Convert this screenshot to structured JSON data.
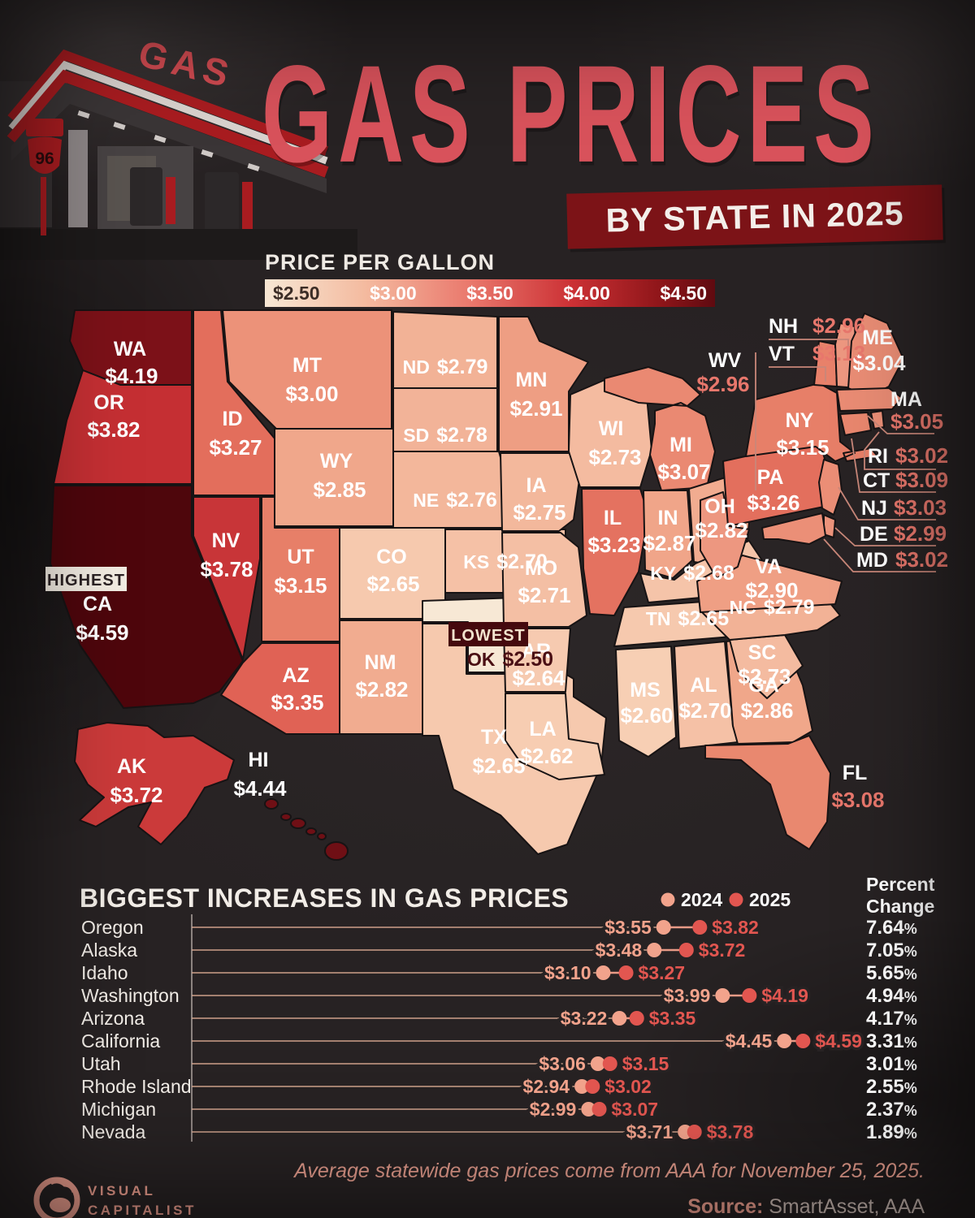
{
  "header": {
    "station_sign": "GAS",
    "shield_number": "96",
    "title": "GAS PRICES",
    "banner": "BY STATE IN 2025"
  },
  "legend": {
    "title": "PRICE PER GALLON",
    "ticks": [
      "$2.50",
      "$3.00",
      "$3.50",
      "$4.00",
      "$4.50"
    ]
  },
  "map": {
    "badges": {
      "highest": "HIGHEST",
      "lowest": "LOWEST"
    },
    "states": {
      "wa": {
        "abbr": "WA",
        "price": "$4.19",
        "color": "#7C1118"
      },
      "or": {
        "abbr": "OR",
        "price": "$3.82",
        "color": "#C52F33"
      },
      "ca": {
        "abbr": "CA",
        "price": "$4.59",
        "color": "#4E060C"
      },
      "nv": {
        "abbr": "NV",
        "price": "$3.78",
        "color": "#C83538"
      },
      "id": {
        "abbr": "ID",
        "price": "$3.27",
        "color": "#E36E5C"
      },
      "mt": {
        "abbr": "MT",
        "price": "$3.00",
        "color": "#EC9279"
      },
      "wy": {
        "abbr": "WY",
        "price": "$2.85",
        "color": "#F0A78B"
      },
      "ut": {
        "abbr": "UT",
        "price": "$3.15",
        "color": "#E77F68"
      },
      "co": {
        "abbr": "CO",
        "price": "$2.65",
        "color": "#F6C9AE"
      },
      "az": {
        "abbr": "AZ",
        "price": "$3.35",
        "color": "#E06255"
      },
      "nm": {
        "abbr": "NM",
        "price": "$2.82",
        "color": "#F1AC90"
      },
      "ak": {
        "abbr": "AK",
        "price": "$3.72",
        "color": "#CB3A3A"
      },
      "hi": {
        "abbr": "HI",
        "price": "$4.44",
        "color": "#6F0F15"
      },
      "nd": {
        "abbr": "ND",
        "price": "$2.79",
        "color": "#F2B296"
      },
      "sd": {
        "abbr": "SD",
        "price": "$2.78",
        "color": "#F2B398"
      },
      "ne": {
        "abbr": "NE",
        "price": "$2.76",
        "color": "#F3B79B"
      },
      "ks": {
        "abbr": "KS",
        "price": "$2.70",
        "color": "#F5C1A6"
      },
      "ok": {
        "abbr": "OK",
        "price": "$2.50",
        "color": "#F7E8D5"
      },
      "tx": {
        "abbr": "TX",
        "price": "$2.65",
        "color": "#F6C9AE"
      },
      "mn": {
        "abbr": "MN",
        "price": "$2.91",
        "color": "#EE9E83"
      },
      "ia": {
        "abbr": "IA",
        "price": "$2.75",
        "color": "#F3B89C"
      },
      "mo": {
        "abbr": "MO",
        "price": "$2.71",
        "color": "#F4BFA4"
      },
      "ar": {
        "abbr": "AR",
        "price": "$2.64",
        "color": "#F6CAB0"
      },
      "la": {
        "abbr": "LA",
        "price": "$2.62",
        "color": "#F7CDB2"
      },
      "wi": {
        "abbr": "WI",
        "price": "$2.73",
        "color": "#F4BBA0"
      },
      "il": {
        "abbr": "IL",
        "price": "$3.23",
        "color": "#E47260"
      },
      "in": {
        "abbr": "IN",
        "price": "$2.87",
        "color": "#F0A589"
      },
      "mi": {
        "abbr": "MI",
        "price": "$3.07",
        "color": "#EA8972"
      },
      "oh": {
        "abbr": "OH",
        "price": "$2.82",
        "color": "#F1AC90"
      },
      "ky": {
        "abbr": "KY",
        "price": "$2.68",
        "color": "#F5C4A9"
      },
      "tn": {
        "abbr": "TN",
        "price": "$2.65",
        "color": "#F6C9AE"
      },
      "ms": {
        "abbr": "MS",
        "price": "$2.60",
        "color": "#F7CFB4"
      },
      "al": {
        "abbr": "AL",
        "price": "$2.70",
        "color": "#F5C1A6"
      },
      "ga": {
        "abbr": "GA",
        "price": "$2.86",
        "color": "#F0A78A"
      },
      "fl": {
        "abbr": "FL",
        "price": "$3.08",
        "color": "#E9886F"
      },
      "sc": {
        "abbr": "SC",
        "price": "$2.73",
        "color": "#F4BBA0"
      },
      "nc": {
        "abbr": "NC",
        "price": "$2.79",
        "color": "#F2B296"
      },
      "va": {
        "abbr": "VA",
        "price": "$2.90",
        "color": "#EF9F84"
      },
      "wv": {
        "abbr": "WV",
        "price": "$2.96",
        "color": "#ED9780"
      },
      "pa": {
        "abbr": "PA",
        "price": "$3.26",
        "color": "#E36F5D"
      },
      "ny": {
        "abbr": "NY",
        "price": "$3.15",
        "color": "#E77F68"
      },
      "nj": {
        "abbr": "NJ",
        "price": "$3.03",
        "color": "#EB8E76"
      },
      "de": {
        "abbr": "DE",
        "price": "$2.99",
        "color": "#EC937B"
      },
      "md": {
        "abbr": "MD",
        "price": "$3.02",
        "color": "#EB8F77"
      },
      "ct": {
        "abbr": "CT",
        "price": "$3.09",
        "color": "#E9876E"
      },
      "ri": {
        "abbr": "RI",
        "price": "$3.02",
        "color": "#EB8F77"
      },
      "ma": {
        "abbr": "MA",
        "price": "$3.05",
        "color": "#EA8C74"
      },
      "vt": {
        "abbr": "VT",
        "price": "$3.13",
        "color": "#E8816A"
      },
      "nh": {
        "abbr": "NH",
        "price": "$2.96",
        "color": "#ED9780"
      },
      "me": {
        "abbr": "ME",
        "price": "$3.04",
        "color": "#EA8D75"
      }
    }
  },
  "chart": {
    "title": "BIGGEST INCREASES IN GAS PRICES",
    "legend": {
      "label_2024": "2024",
      "label_2025": "2025",
      "color_2024": "#F2A38C",
      "color_2025": "#E25650"
    },
    "percent_header_line1": "Percent",
    "percent_header_line2": "Change",
    "rows": [
      {
        "state": "Oregon",
        "p2024": 3.55,
        "p2025": 3.82,
        "pct": "7.64"
      },
      {
        "state": "Alaska",
        "p2024": 3.48,
        "p2025": 3.72,
        "pct": "7.05"
      },
      {
        "state": "Idaho",
        "p2024": 3.1,
        "p2025": 3.27,
        "pct": "5.65"
      },
      {
        "state": "Washington",
        "p2024": 3.99,
        "p2025": 4.19,
        "pct": "4.94"
      },
      {
        "state": "Arizona",
        "p2024": 3.22,
        "p2025": 3.35,
        "pct": "4.17"
      },
      {
        "state": "California",
        "p2024": 4.45,
        "p2025": 4.59,
        "pct": "3.31"
      },
      {
        "state": "Utah",
        "p2024": 3.06,
        "p2025": 3.15,
        "pct": "3.01"
      },
      {
        "state": "Rhode Island",
        "p2024": 2.94,
        "p2025": 3.02,
        "pct": "2.55"
      },
      {
        "state": "Michigan",
        "p2024": 2.99,
        "p2025": 3.07,
        "pct": "2.37"
      },
      {
        "state": "Nevada",
        "p2024": 3.71,
        "p2025": 3.78,
        "pct": "1.89"
      }
    ]
  },
  "footer": {
    "note": "Average statewide gas prices come from AAA for November 25, 2025.",
    "source_label": "Source:",
    "source_value": " SmartAsset, AAA"
  },
  "logo": {
    "line1": "VISUAL",
    "line2": "CAPITALIST"
  },
  "chart_data": [
    {
      "type": "heatmap",
      "subtype": "us-choropleth",
      "title": "Gas price per gallon by state, 2025 (USD)",
      "scale_domain": [
        2.5,
        4.5
      ],
      "scale_ticks": [
        "$2.50",
        "$3.00",
        "$3.50",
        "$4.00",
        "$4.50"
      ],
      "highest": {
        "state": "CA",
        "value": 4.59
      },
      "lowest": {
        "state": "OK",
        "value": 2.5
      },
      "values": {
        "WA": 4.19,
        "OR": 3.82,
        "CA": 4.59,
        "NV": 3.78,
        "ID": 3.27,
        "MT": 3.0,
        "WY": 2.85,
        "UT": 3.15,
        "CO": 2.65,
        "AZ": 3.35,
        "NM": 2.82,
        "AK": 3.72,
        "HI": 4.44,
        "ND": 2.79,
        "SD": 2.78,
        "NE": 2.76,
        "KS": 2.7,
        "OK": 2.5,
        "TX": 2.65,
        "MN": 2.91,
        "IA": 2.75,
        "MO": 2.71,
        "AR": 2.64,
        "LA": 2.62,
        "WI": 2.73,
        "IL": 3.23,
        "IN": 2.87,
        "MI": 3.07,
        "OH": 2.82,
        "KY": 2.68,
        "TN": 2.65,
        "MS": 2.6,
        "AL": 2.7,
        "GA": 2.86,
        "FL": 3.08,
        "SC": 2.73,
        "NC": 2.79,
        "VA": 2.9,
        "WV": 2.96,
        "PA": 3.26,
        "NY": 3.15,
        "NJ": 3.03,
        "DE": 2.99,
        "MD": 3.02,
        "CT": 3.09,
        "RI": 3.02,
        "MA": 3.05,
        "VT": 3.13,
        "NH": 2.96,
        "ME": 3.04
      }
    },
    {
      "type": "scatter",
      "subtype": "dumbbell",
      "title": "Biggest increases in gas prices",
      "series": [
        {
          "name": "2024",
          "values": [
            3.55,
            3.48,
            3.1,
            3.99,
            3.22,
            4.45,
            3.06,
            2.94,
            2.99,
            3.71
          ]
        },
        {
          "name": "2025",
          "values": [
            3.82,
            3.72,
            3.27,
            4.19,
            3.35,
            4.59,
            3.15,
            3.02,
            3.07,
            3.78
          ]
        }
      ],
      "categories": [
        "Oregon",
        "Alaska",
        "Idaho",
        "Washington",
        "Arizona",
        "California",
        "Utah",
        "Rhode Island",
        "Michigan",
        "Nevada"
      ],
      "percent_change": [
        7.64,
        7.05,
        5.65,
        4.94,
        4.17,
        3.31,
        3.01,
        2.55,
        2.37,
        1.89
      ],
      "legend_position": "top-right"
    }
  ]
}
